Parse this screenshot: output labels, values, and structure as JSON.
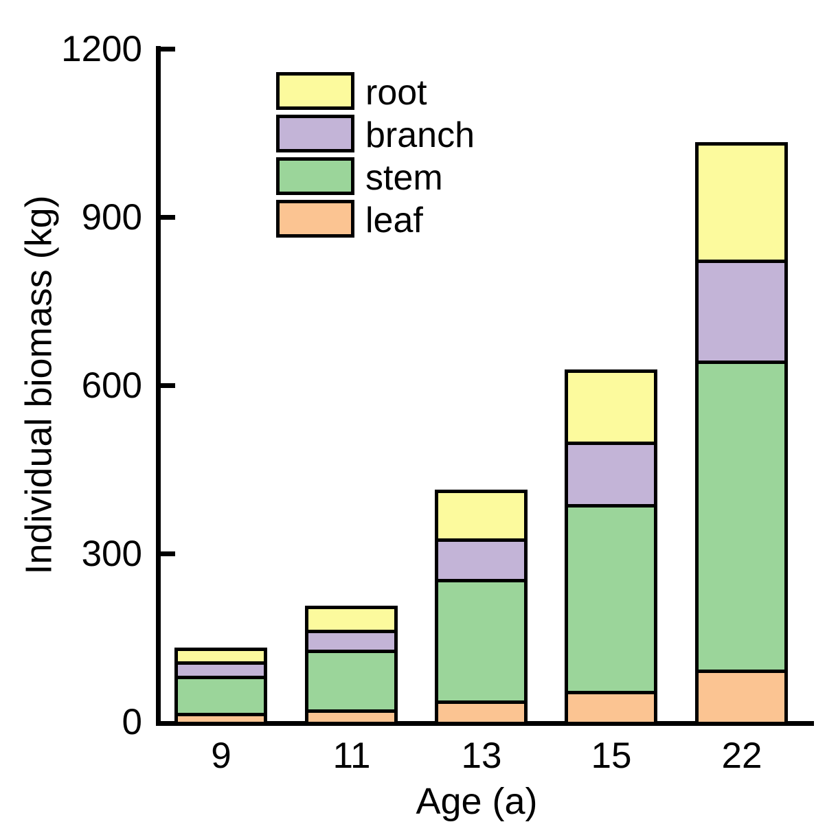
{
  "figure": {
    "y_axis": {
      "title": "Individual biomass (kg)",
      "tick_labels": [
        "0",
        "300",
        "600",
        "900",
        "1200"
      ]
    },
    "x_axis": {
      "title": "Age (a)",
      "tick_labels": [
        "9",
        "11",
        "13",
        "15",
        "22"
      ]
    },
    "legend": [
      {
        "label": "root",
        "color": "#FCFA9D"
      },
      {
        "label": "branch",
        "color": "#C3B4D7"
      },
      {
        "label": "stem",
        "color": "#9BD59A"
      },
      {
        "label": "leaf",
        "color": "#FBC492"
      }
    ],
    "colors": {
      "axis": "#000000",
      "bar_border": "#000000",
      "background": "#FFFFFF"
    }
  },
  "chart_data": {
    "type": "bar",
    "stacked": true,
    "title": "",
    "xlabel": "Age (a)",
    "ylabel": "Individual biomass (kg)",
    "categories": [
      "9",
      "11",
      "13",
      "15",
      "22"
    ],
    "series": [
      {
        "name": "leaf",
        "color": "#FBC492",
        "values": [
          13,
          20,
          36,
          53,
          91
        ]
      },
      {
        "name": "stem",
        "color": "#9BD59A",
        "values": [
          67,
          106,
          216,
          333,
          551
        ]
      },
      {
        "name": "branch",
        "color": "#C3B4D7",
        "values": [
          25,
          36,
          73,
          111,
          180
        ]
      },
      {
        "name": "root",
        "color": "#FCFA9D",
        "values": [
          27,
          45,
          89,
          131,
          212
        ]
      }
    ],
    "totals": [
      132,
      207,
      414,
      628,
      1034
    ],
    "ylim": [
      0,
      1200
    ],
    "yticks": [
      0,
      300,
      600,
      900,
      1200
    ],
    "grid": false,
    "legend_position": "upper-left-inside",
    "legend_order_top_to_bottom": [
      "root",
      "branch",
      "stem",
      "leaf"
    ]
  }
}
